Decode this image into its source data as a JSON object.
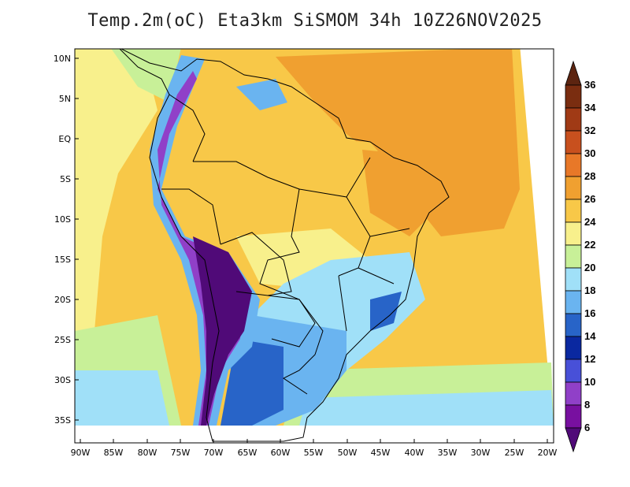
{
  "title": "Temp.2m(oC) Eta3km SiSMOM 34h 10Z26NOV2025",
  "map": {
    "lat_ticks": [
      "10N",
      "5N",
      "EQ",
      "5S",
      "10S",
      "15S",
      "20S",
      "25S",
      "30S",
      "35S"
    ],
    "lon_ticks": [
      "90W",
      "85W",
      "80W",
      "75W",
      "70W",
      "65W",
      "60W",
      "55W",
      "50W",
      "45W",
      "40W",
      "35W",
      "30W",
      "25W",
      "20W"
    ]
  },
  "colorbar": {
    "labels": [
      "36",
      "34",
      "32",
      "30",
      "28",
      "26",
      "24",
      "22",
      "20",
      "18",
      "16",
      "14",
      "12",
      "10",
      "8",
      "6"
    ],
    "colors": [
      "#7a2d10",
      "#a03a15",
      "#c8501e",
      "#e87828",
      "#f0a030",
      "#f8c848",
      "#f8f08c",
      "#c8f098",
      "#a0e0f8",
      "#6ab4f0",
      "#2864c8",
      "#0a28a0",
      "#4850d8",
      "#9040c8",
      "#7810a0",
      "#500a78"
    ],
    "top_arrow_color": "#5c2410",
    "bottom_arrow_color": "#500a78"
  }
}
